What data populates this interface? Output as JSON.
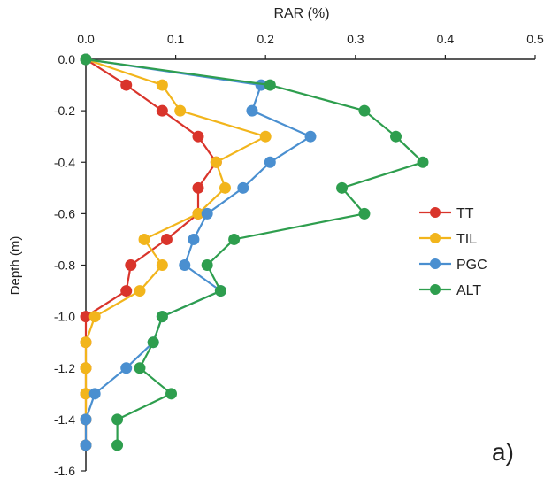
{
  "chart_data": {
    "type": "line",
    "orientation": "depth-profile",
    "x_label": "RAR (%)",
    "y_label": "Depth (m)",
    "panel_label": "a)",
    "xlim": [
      0.0,
      0.5
    ],
    "ylim": [
      -1.6,
      0.0
    ],
    "x_ticks": [
      0.0,
      0.1,
      0.2,
      0.3,
      0.4,
      0.5
    ],
    "x_tick_labels": [
      "0.0",
      "0.1",
      "0.2",
      "0.3",
      "0.4",
      "0.5"
    ],
    "y_ticks": [
      0.0,
      -0.2,
      -0.4,
      -0.6,
      -0.8,
      -1.0,
      -1.2,
      -1.4,
      -1.6
    ],
    "y_tick_labels": [
      "0.0",
      "-0.2",
      "-0.4",
      "-0.6",
      "-0.8",
      "-1.0",
      "-1.2",
      "-1.4",
      "-1.6"
    ],
    "x_axis_position": "top",
    "grid": false,
    "legend_position": "middle-right",
    "series": [
      {
        "name": "TT",
        "color": "#d9342b",
        "points": [
          [
            0.0,
            0.0
          ],
          [
            0.045,
            -0.1
          ],
          [
            0.085,
            -0.2
          ],
          [
            0.125,
            -0.3
          ],
          [
            0.145,
            -0.4
          ],
          [
            0.125,
            -0.5
          ],
          [
            0.125,
            -0.6
          ],
          [
            0.09,
            -0.7
          ],
          [
            0.05,
            -0.8
          ],
          [
            0.045,
            -0.9
          ],
          [
            0.0,
            -1.0
          ],
          [
            0.0,
            -1.1
          ],
          [
            0.0,
            -1.2
          ],
          [
            0.0,
            -1.3
          ],
          [
            0.0,
            -1.4
          ],
          [
            0.0,
            -1.5
          ]
        ]
      },
      {
        "name": "TIL",
        "color": "#f2b51c",
        "points": [
          [
            0.0,
            0.0
          ],
          [
            0.085,
            -0.1
          ],
          [
            0.105,
            -0.2
          ],
          [
            0.2,
            -0.3
          ],
          [
            0.145,
            -0.4
          ],
          [
            0.155,
            -0.5
          ],
          [
            0.125,
            -0.6
          ],
          [
            0.065,
            -0.7
          ],
          [
            0.085,
            -0.8
          ],
          [
            0.06,
            -0.9
          ],
          [
            0.01,
            -1.0
          ],
          [
            0.0,
            -1.1
          ],
          [
            0.0,
            -1.2
          ],
          [
            0.0,
            -1.3
          ],
          [
            0.0,
            -1.4
          ],
          [
            0.0,
            -1.5
          ]
        ]
      },
      {
        "name": "PGC",
        "color": "#4a8fd0",
        "points": [
          [
            0.0,
            0.0
          ],
          [
            0.195,
            -0.1
          ],
          [
            0.185,
            -0.2
          ],
          [
            0.25,
            -0.3
          ],
          [
            0.205,
            -0.4
          ],
          [
            0.175,
            -0.5
          ],
          [
            0.135,
            -0.6
          ],
          [
            0.12,
            -0.7
          ],
          [
            0.11,
            -0.8
          ],
          [
            0.15,
            -0.9
          ],
          [
            0.085,
            -1.0
          ],
          [
            0.075,
            -1.1
          ],
          [
            0.045,
            -1.2
          ],
          [
            0.01,
            -1.3
          ],
          [
            0.0,
            -1.4
          ],
          [
            0.0,
            -1.5
          ]
        ]
      },
      {
        "name": "ALT",
        "color": "#2e9e4e",
        "points": [
          [
            0.0,
            0.0
          ],
          [
            0.205,
            -0.1
          ],
          [
            0.31,
            -0.2
          ],
          [
            0.345,
            -0.3
          ],
          [
            0.375,
            -0.4
          ],
          [
            0.285,
            -0.5
          ],
          [
            0.31,
            -0.6
          ],
          [
            0.165,
            -0.7
          ],
          [
            0.135,
            -0.8
          ],
          [
            0.15,
            -0.9
          ],
          [
            0.085,
            -1.0
          ],
          [
            0.075,
            -1.1
          ],
          [
            0.06,
            -1.2
          ],
          [
            0.095,
            -1.3
          ],
          [
            0.035,
            -1.4
          ],
          [
            0.035,
            -1.5
          ]
        ]
      }
    ]
  }
}
